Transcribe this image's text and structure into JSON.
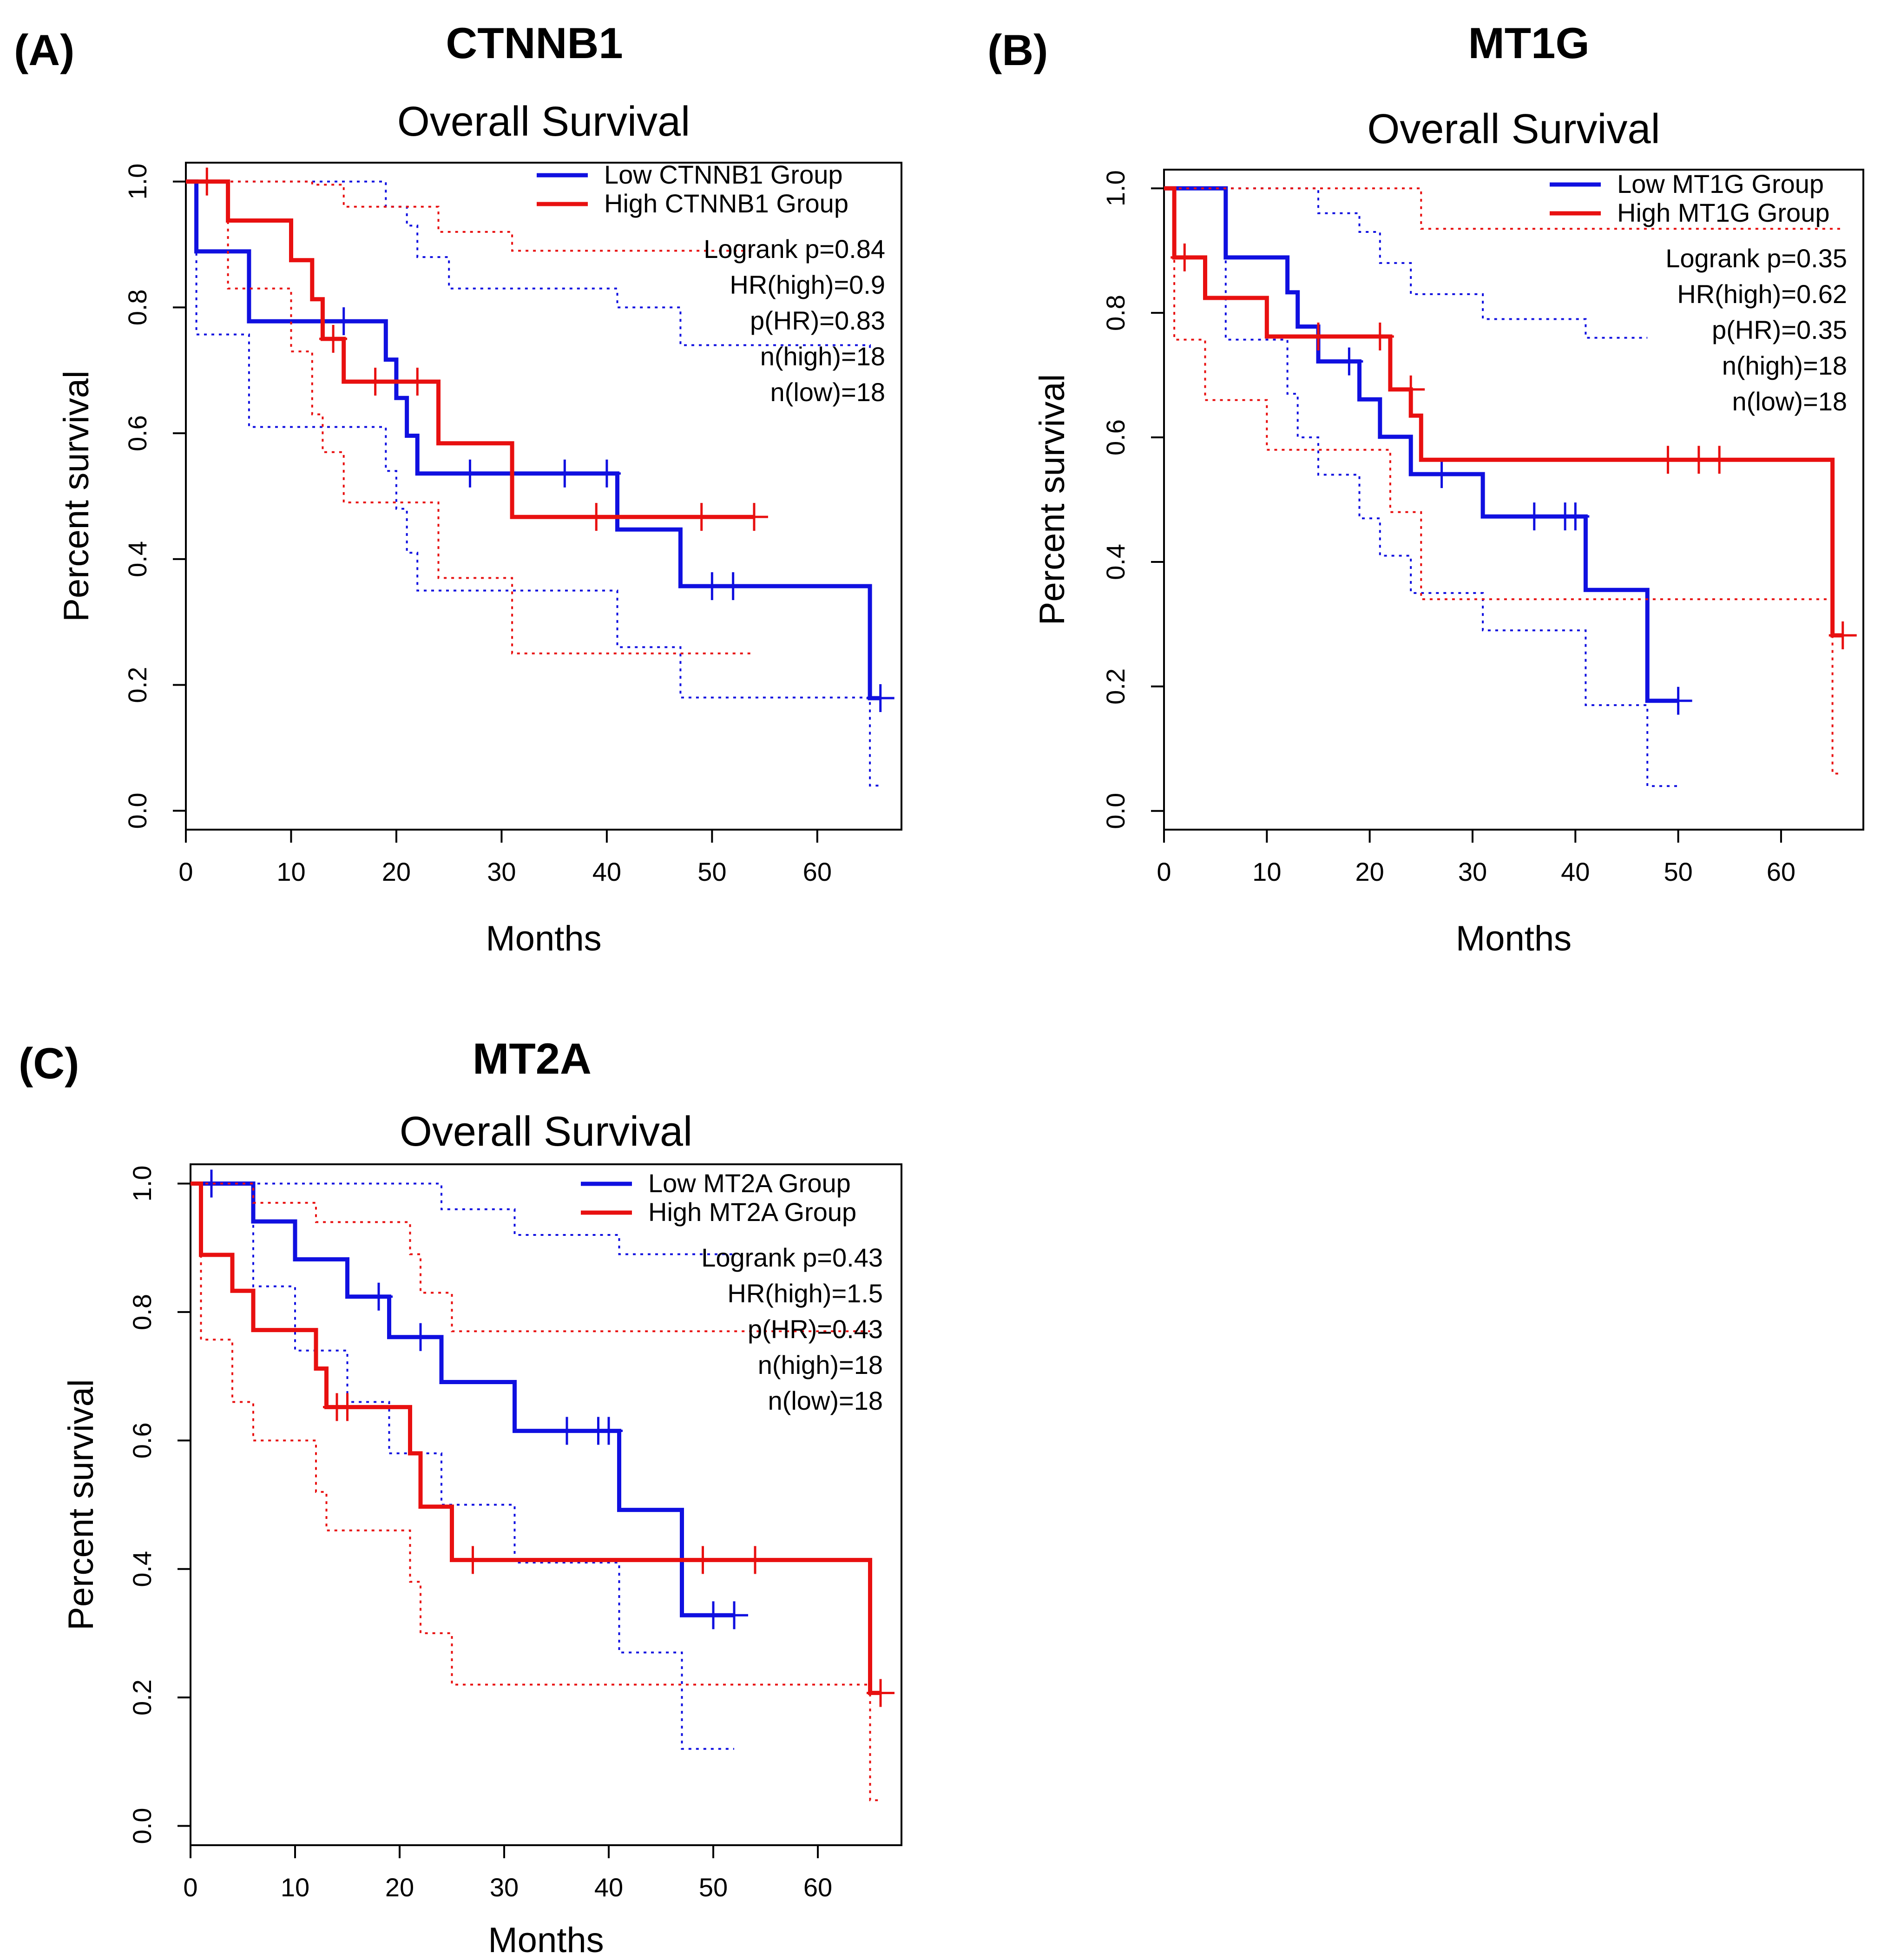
{
  "figure": {
    "colors": {
      "low": "#1010e0",
      "high": "#e81010",
      "axis": "#000000"
    }
  },
  "chart_data": [
    {
      "type": "line",
      "panel_label": "(A)",
      "gene": "CTNNB1",
      "title": "Overall Survival",
      "xlabel": "Months",
      "ylabel": "Percent survival",
      "xlim": [
        0,
        68
      ],
      "ylim": [
        -0.03,
        1.03
      ],
      "xticks": [
        0,
        10,
        20,
        30,
        40,
        50,
        60
      ],
      "yticks": [
        0.0,
        0.2,
        0.4,
        0.6,
        0.8,
        1.0
      ],
      "ytick_labels": [
        "0.0",
        "0.2",
        "0.4",
        "0.6",
        "0.8",
        "1.0"
      ],
      "legend": {
        "position": "top-right",
        "entries": [
          "Low CTNNB1 Group",
          "High CTNNB1 Group"
        ]
      },
      "stats": [
        "Logrank p=0.84",
        "HR(high)=0.9",
        "p(HR)=0.83",
        "n(high)=18",
        "n(low)=18"
      ],
      "series": [
        {
          "name": "Low CTNNB1 Group",
          "group": "low",
          "x": [
            0,
            1,
            6,
            19,
            20,
            21,
            22,
            25,
            41,
            47,
            65,
            66
          ],
          "y": [
            1.0,
            0.889,
            0.778,
            0.717,
            0.656,
            0.596,
            0.536,
            0.536,
            0.447,
            0.357,
            0.179,
            0.179
          ],
          "censor_x": [
            15,
            27,
            36,
            40,
            50,
            52,
            66
          ],
          "censor_y": [
            0.778,
            0.536,
            0.536,
            0.536,
            0.357,
            0.357,
            0.179
          ],
          "ci_upper_x": [
            0,
            19,
            21,
            22,
            25,
            41,
            47,
            65
          ],
          "ci_upper_y": [
            1.0,
            0.96,
            0.93,
            0.88,
            0.83,
            0.8,
            0.74,
            0.73
          ],
          "ci_lower_x": [
            0,
            1,
            6,
            19,
            20,
            21,
            22,
            25,
            41,
            47,
            65,
            66
          ],
          "ci_lower_y": [
            1.0,
            0.757,
            0.61,
            0.54,
            0.48,
            0.41,
            0.35,
            0.35,
            0.26,
            0.18,
            0.04,
            0.04
          ]
        },
        {
          "name": "High CTNNB1 Group",
          "group": "high",
          "x": [
            0,
            4,
            10,
            12,
            13,
            15,
            24,
            31,
            54
          ],
          "y": [
            1.0,
            0.938,
            0.875,
            0.813,
            0.75,
            0.682,
            0.584,
            0.467,
            0.467
          ],
          "censor_x": [
            2,
            14,
            18,
            22,
            39,
            49,
            54
          ],
          "censor_y": [
            1.0,
            0.75,
            0.682,
            0.682,
            0.467,
            0.467,
            0.467
          ],
          "ci_upper_x": [
            0,
            12,
            15,
            24,
            31,
            54
          ],
          "ci_upper_y": [
            1.0,
            0.995,
            0.96,
            0.92,
            0.89,
            0.89
          ],
          "ci_lower_x": [
            0,
            4,
            10,
            12,
            13,
            15,
            24,
            31,
            54
          ],
          "ci_lower_y": [
            1.0,
            0.83,
            0.73,
            0.63,
            0.57,
            0.49,
            0.37,
            0.25,
            0.25
          ]
        }
      ]
    },
    {
      "type": "line",
      "panel_label": "(B)",
      "gene": "MT1G",
      "title": "Overall Survival",
      "xlabel": "Months",
      "ylabel": "Percent survival",
      "xlim": [
        0,
        68
      ],
      "ylim": [
        -0.03,
        1.03
      ],
      "xticks": [
        0,
        10,
        20,
        30,
        40,
        50,
        60
      ],
      "yticks": [
        0.0,
        0.2,
        0.4,
        0.6,
        0.8,
        1.0
      ],
      "ytick_labels": [
        "0.0",
        "0.2",
        "0.4",
        "0.6",
        "0.8",
        "1.0"
      ],
      "legend": {
        "position": "top-right",
        "entries": [
          "Low MT1G Group",
          "High MT1G Group"
        ]
      },
      "stats": [
        "Logrank p=0.35",
        "HR(high)=0.62",
        "p(HR)=0.35",
        "n(high)=18",
        "n(low)=18"
      ],
      "series": [
        {
          "name": "Low MT1G Group",
          "group": "low",
          "x": [
            0,
            6,
            12,
            13,
            15,
            19,
            21,
            24,
            31,
            41,
            47,
            50
          ],
          "y": [
            1.0,
            0.889,
            0.833,
            0.778,
            0.722,
            0.661,
            0.601,
            0.541,
            0.473,
            0.355,
            0.177,
            0.177
          ],
          "censor_x": [
            18,
            27,
            36,
            39,
            40,
            50
          ],
          "censor_y": [
            0.722,
            0.541,
            0.473,
            0.473,
            0.473,
            0.177
          ],
          "ci_upper_x": [
            0,
            15,
            19,
            21,
            24,
            31,
            41,
            47
          ],
          "ci_upper_y": [
            1.0,
            0.96,
            0.93,
            0.88,
            0.83,
            0.79,
            0.76,
            0.76
          ],
          "ci_lower_x": [
            0,
            6,
            12,
            13,
            15,
            19,
            21,
            24,
            31,
            41,
            47,
            50
          ],
          "ci_lower_y": [
            1.0,
            0.757,
            0.67,
            0.6,
            0.54,
            0.47,
            0.41,
            0.35,
            0.29,
            0.17,
            0.04,
            0.04
          ]
        },
        {
          "name": "High MT1G Group",
          "group": "high",
          "x": [
            0,
            1,
            4,
            10,
            22,
            24,
            25,
            65,
            66
          ],
          "y": [
            1.0,
            0.889,
            0.824,
            0.762,
            0.677,
            0.635,
            0.564,
            0.282,
            0.282
          ],
          "censor_x": [
            2,
            15,
            21,
            24,
            49,
            52,
            54,
            66
          ],
          "censor_y": [
            0.889,
            0.762,
            0.762,
            0.677,
            0.564,
            0.564,
            0.564,
            0.282
          ],
          "ci_upper_x": [
            0,
            25,
            65,
            66
          ],
          "ci_upper_y": [
            1.0,
            0.935,
            0.935,
            0.935
          ],
          "ci_lower_x": [
            0,
            1,
            4,
            10,
            22,
            25,
            65,
            66
          ],
          "ci_lower_y": [
            1.0,
            0.757,
            0.66,
            0.58,
            0.48,
            0.34,
            0.06,
            0.06
          ]
        }
      ]
    },
    {
      "type": "line",
      "panel_label": "(C)",
      "gene": "MT2A",
      "title": "Overall Survival",
      "xlabel": "Months",
      "ylabel": "Percent survival",
      "xlim": [
        0,
        68
      ],
      "ylim": [
        -0.03,
        1.03
      ],
      "xticks": [
        0,
        10,
        20,
        30,
        40,
        50,
        60
      ],
      "yticks": [
        0.0,
        0.2,
        0.4,
        0.6,
        0.8,
        1.0
      ],
      "ytick_labels": [
        "0.0",
        "0.2",
        "0.4",
        "0.6",
        "0.8",
        "1.0"
      ],
      "legend": {
        "position": "top-right",
        "entries": [
          "Low MT2A Group",
          "High MT2A Group"
        ]
      },
      "stats": [
        "Logrank p=0.43",
        "HR(high)=1.5",
        "p(HR)=0.43",
        "n(high)=18",
        "n(low)=18"
      ],
      "series": [
        {
          "name": "Low MT2A Group",
          "group": "low",
          "x": [
            0,
            6,
            10,
            15,
            19,
            24,
            31,
            41,
            47,
            52
          ],
          "y": [
            1.0,
            0.941,
            0.882,
            0.824,
            0.761,
            0.691,
            0.615,
            0.492,
            0.328,
            0.328
          ],
          "censor_x": [
            2,
            18,
            22,
            36,
            39,
            40,
            50,
            52
          ],
          "censor_y": [
            1.0,
            0.824,
            0.761,
            0.615,
            0.615,
            0.615,
            0.328,
            0.328
          ],
          "ci_upper_x": [
            0,
            24,
            31,
            41,
            47,
            52
          ],
          "ci_upper_y": [
            1.0,
            0.96,
            0.92,
            0.89,
            0.89,
            0.89
          ],
          "ci_lower_x": [
            0,
            6,
            10,
            15,
            19,
            24,
            31,
            41,
            47,
            52
          ],
          "ci_lower_y": [
            1.0,
            0.84,
            0.74,
            0.66,
            0.58,
            0.5,
            0.41,
            0.27,
            0.12,
            0.12
          ]
        },
        {
          "name": "High MT2A Group",
          "group": "high",
          "x": [
            0,
            1,
            4,
            6,
            12,
            13,
            21,
            22,
            25,
            65,
            66
          ],
          "y": [
            1.0,
            0.889,
            0.833,
            0.772,
            0.712,
            0.652,
            0.58,
            0.497,
            0.414,
            0.207,
            0.207
          ],
          "censor_x": [
            14,
            15,
            27,
            49,
            54,
            66
          ],
          "censor_y": [
            0.652,
            0.652,
            0.414,
            0.414,
            0.414,
            0.207
          ],
          "ci_upper_x": [
            0,
            6,
            12,
            21,
            22,
            25,
            65
          ],
          "ci_upper_y": [
            1.0,
            0.97,
            0.94,
            0.89,
            0.83,
            0.77,
            0.77
          ],
          "ci_lower_x": [
            0,
            1,
            4,
            6,
            12,
            13,
            21,
            22,
            25,
            65,
            66
          ],
          "ci_lower_y": [
            1.0,
            0.757,
            0.66,
            0.6,
            0.52,
            0.46,
            0.38,
            0.3,
            0.22,
            0.04,
            0.04
          ]
        }
      ]
    }
  ]
}
